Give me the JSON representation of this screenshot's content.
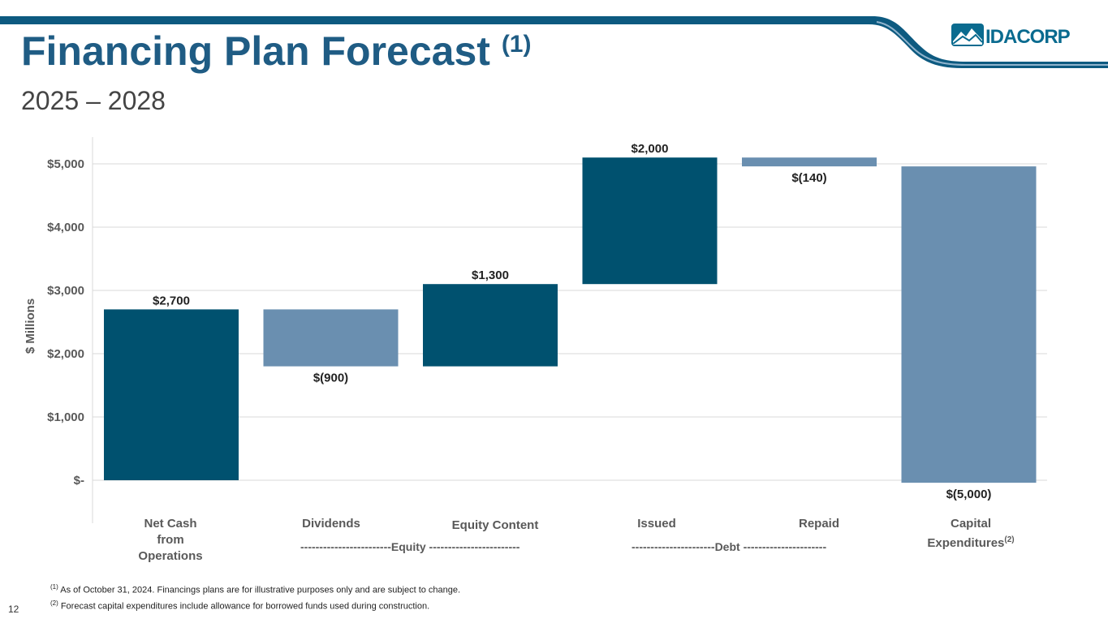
{
  "header": {
    "title": "Financing Plan Forecast",
    "title_sup": "(1)",
    "subtitle": "2025 – 2028",
    "logo_text": "IDACORP"
  },
  "colors": {
    "dark_blue": "#00516f",
    "light_blue": "#6a8fb0",
    "title_blue": "#1f5c84",
    "band_blue": "#0d5a80"
  },
  "chart_data": {
    "type": "waterfall",
    "ylabel": "$ Millions",
    "ylim": [
      -500,
      5500
    ],
    "y_ticks": [
      {
        "value": 0,
        "label": "$-"
      },
      {
        "value": 1000,
        "label": "$1,000"
      },
      {
        "value": 2000,
        "label": "$2,000"
      },
      {
        "value": 3000,
        "label": "$3,000"
      },
      {
        "value": 4000,
        "label": "$4,000"
      },
      {
        "value": 5000,
        "label": "$5,000"
      }
    ],
    "bars": [
      {
        "category": "Net Cash from Operations",
        "start": 0,
        "end": 2700,
        "label": "$2,700",
        "color": "dark",
        "label_pos": "top"
      },
      {
        "category": "Dividends",
        "start": 2700,
        "end": 1800,
        "label": "$(900)",
        "color": "light",
        "label_pos": "bottom"
      },
      {
        "category": "Equity Content",
        "start": 1800,
        "end": 3100,
        "label": "$1,300",
        "color": "dark",
        "label_pos": "top"
      },
      {
        "category": "Issued",
        "start": 3100,
        "end": 5100,
        "label": "$2,000",
        "color": "dark",
        "label_pos": "top"
      },
      {
        "category": "Repaid",
        "start": 5100,
        "end": 4960,
        "label": "$(140)",
        "color": "light",
        "label_pos": "bottom"
      },
      {
        "category": "Capital Expenditures",
        "start": 4960,
        "end": -40,
        "label": "$(5,000)",
        "color": "light",
        "label_pos": "bottom"
      }
    ]
  },
  "category_labels": {
    "net_cash_line1": "Net Cash",
    "net_cash_line2": "from",
    "net_cash_line3": "Operations",
    "dividends": "Dividends",
    "equity_content": "Equity Content",
    "issued": "Issued",
    "repaid": "Repaid",
    "capex_line1": "Capital",
    "capex_line2": "Expenditures",
    "capex_sup": "(2)"
  },
  "groups": {
    "equity": "------------------------Equity ------------------------",
    "debt": "----------------------Debt ----------------------"
  },
  "footnotes": {
    "note1_marker": "(1)",
    "note1": " As of October 31, 2024. Financings plans are for illustrative purposes only and are subject to change.",
    "note2_marker": "(2)",
    "note2": " Forecast capital expenditures include allowance for borrowed funds used during construction."
  },
  "page_number": "12"
}
